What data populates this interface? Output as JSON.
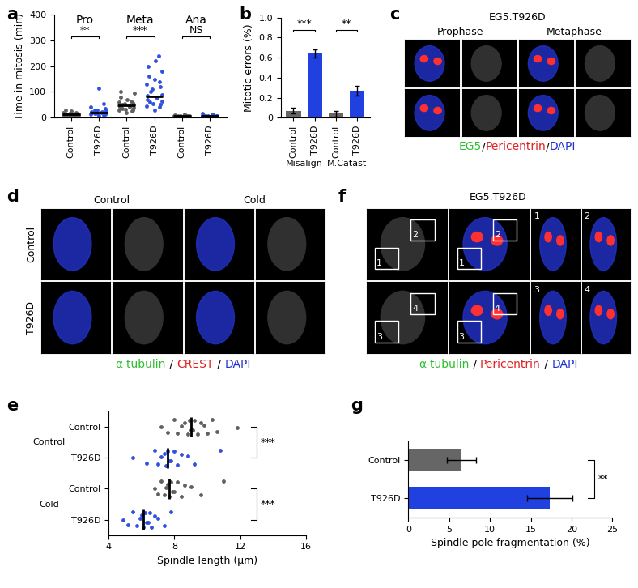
{
  "chart_data": [
    {
      "panel": "a",
      "type": "scatter",
      "categories": [
        "Control",
        "T926D",
        "Control",
        "T926D",
        "Control",
        "T926D"
      ],
      "colors": [
        "#606060",
        "#3050e0",
        "#606060",
        "#3050e0",
        "#606060",
        "#3050e0"
      ],
      "groups": [
        {
          "label": "Pro",
          "significance": "**"
        },
        {
          "label": "Meta",
          "significance": "***"
        },
        {
          "label": "Ana",
          "significance": "NS"
        }
      ],
      "values": [
        [
          5,
          6,
          7,
          8,
          8,
          9,
          10,
          10,
          11,
          12,
          12,
          13,
          14,
          15,
          16,
          18,
          20,
          25,
          30
        ],
        [
          8,
          10,
          12,
          14,
          15,
          16,
          18,
          18,
          20,
          22,
          24,
          25,
          28,
          30,
          35,
          40,
          55,
          115
        ],
        [
          20,
          25,
          28,
          30,
          32,
          35,
          38,
          40,
          42,
          45,
          48,
          50,
          52,
          55,
          58,
          60,
          65,
          70,
          80,
          95,
          100
        ],
        [
          30,
          40,
          45,
          50,
          55,
          60,
          65,
          70,
          75,
          80,
          85,
          90,
          100,
          110,
          120,
          130,
          140,
          150,
          160,
          180,
          200,
          220,
          240
        ],
        [
          5,
          6,
          6,
          7,
          7,
          8,
          8,
          9,
          10,
          12
        ],
        [
          4,
          5,
          6,
          6,
          7,
          8,
          8,
          9,
          10,
          12,
          15
        ]
      ],
      "means": [
        12,
        20,
        48,
        82,
        8,
        8
      ],
      "ylabel": "Time in mitosis (min)",
      "ylim": [
        0,
        400
      ],
      "yticks": [
        0,
        100,
        200,
        300,
        400
      ]
    },
    {
      "panel": "b",
      "type": "bar",
      "categories": [
        "Control",
        "T926D",
        "Control",
        "T926D"
      ],
      "colors": [
        "#666666",
        "#2040e0",
        "#666666",
        "#2040e0"
      ],
      "groups": [
        {
          "label": "Misalign",
          "significance": "***"
        },
        {
          "label": "M.Catast",
          "significance": "**"
        }
      ],
      "values": [
        0.07,
        0.64,
        0.04,
        0.27
      ],
      "errors": [
        0.03,
        0.04,
        0.03,
        0.05
      ],
      "ylabel": "Mitotic errors (%)",
      "ylim": [
        0,
        1.0
      ],
      "yticks": [
        0,
        0.2,
        0.4,
        0.6,
        0.8,
        1.0
      ]
    },
    {
      "panel": "c",
      "type": "image",
      "title": "EG5.T926D",
      "columns": [
        "Prophase",
        "Metaphase"
      ],
      "caption": [
        {
          "text": "EG5",
          "color": "#2fbf2f"
        },
        {
          "text": "/",
          "color": "#000000"
        },
        {
          "text": "Pericentrin",
          "color": "#e02020"
        },
        {
          "text": "/",
          "color": "#000000"
        },
        {
          "text": "DAPI",
          "color": "#2030d0"
        }
      ]
    },
    {
      "panel": "d",
      "type": "image",
      "columns": [
        "Control",
        "Cold"
      ],
      "rows": [
        "Control",
        "T926D"
      ],
      "caption": [
        {
          "text": "α-tubulin",
          "color": "#2fbf2f"
        },
        {
          "text": " / ",
          "color": "#000000"
        },
        {
          "text": "CREST",
          "color": "#e02020"
        },
        {
          "text": " / ",
          "color": "#000000"
        },
        {
          "text": "DAPI",
          "color": "#2030d0"
        }
      ]
    },
    {
      "panel": "e",
      "type": "scatter",
      "orientation": "horizontal",
      "categories": [
        "Control",
        "T926D",
        "Control",
        "T926D"
      ],
      "colors": [
        "#606060",
        "#3050e0",
        "#606060",
        "#3050e0"
      ],
      "groups": [
        {
          "label": "Control",
          "significance": "***"
        },
        {
          "label": "Cold",
          "significance": "***"
        }
      ],
      "values": [
        [
          7.2,
          7.6,
          8.0,
          8.2,
          8.4,
          8.6,
          8.8,
          8.9,
          9.0,
          9.1,
          9.2,
          9.4,
          9.6,
          9.8,
          10.0,
          10.3,
          10.6,
          11.8
        ],
        [
          5.5,
          6.3,
          6.8,
          7.0,
          7.2,
          7.4,
          7.5,
          7.6,
          7.7,
          7.8,
          8.0,
          8.2,
          8.4,
          8.8,
          9.2,
          10.8
        ],
        [
          6.8,
          7.0,
          7.2,
          7.4,
          7.5,
          7.6,
          7.7,
          7.8,
          7.9,
          8.0,
          8.2,
          8.4,
          8.6,
          9.0,
          9.6,
          11.0
        ],
        [
          4.9,
          5.2,
          5.5,
          5.7,
          5.9,
          6.0,
          6.1,
          6.2,
          6.3,
          6.4,
          6.5,
          6.6,
          6.8,
          7.0,
          7.4,
          7.8
        ]
      ],
      "means": [
        9.0,
        7.6,
        7.7,
        6.1
      ],
      "xlabel": "Spindle length (µm)",
      "xlim": [
        4,
        16
      ],
      "xticks": [
        4,
        8,
        12,
        16
      ]
    },
    {
      "panel": "f",
      "type": "image",
      "title": "EG5.T926D",
      "insets": [
        "1",
        "2",
        "3",
        "4"
      ],
      "caption": [
        {
          "text": "α-tubulin",
          "color": "#2fbf2f"
        },
        {
          "text": " / ",
          "color": "#000000"
        },
        {
          "text": "Pericentrin",
          "color": "#e02020"
        },
        {
          "text": " / ",
          "color": "#000000"
        },
        {
          "text": "DAPI",
          "color": "#2030d0"
        }
      ]
    },
    {
      "panel": "g",
      "type": "bar",
      "orientation": "horizontal",
      "categories": [
        "Control",
        "T926D"
      ],
      "colors": [
        "#666666",
        "#2040e0"
      ],
      "values": [
        6.5,
        17.3
      ],
      "errors": [
        1.8,
        2.8
      ],
      "significance": "**",
      "xlabel": "Spindle pole fragmentation (%)",
      "xlim": [
        0,
        25
      ],
      "xticks": [
        0,
        5,
        10,
        15,
        20,
        25
      ]
    }
  ]
}
